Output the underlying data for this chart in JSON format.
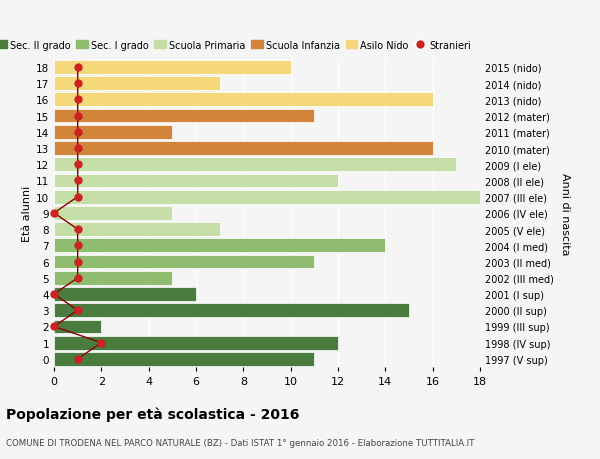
{
  "ages": [
    18,
    17,
    16,
    15,
    14,
    13,
    12,
    11,
    10,
    9,
    8,
    7,
    6,
    5,
    4,
    3,
    2,
    1,
    0
  ],
  "years": [
    "1997 (V sup)",
    "1998 (IV sup)",
    "1999 (III sup)",
    "2000 (II sup)",
    "2001 (I sup)",
    "2002 (III med)",
    "2003 (II med)",
    "2004 (I med)",
    "2005 (V ele)",
    "2006 (IV ele)",
    "2007 (III ele)",
    "2008 (II ele)",
    "2009 (I ele)",
    "2010 (mater)",
    "2011 (mater)",
    "2012 (mater)",
    "2013 (nido)",
    "2014 (nido)",
    "2015 (nido)"
  ],
  "bar_values": [
    11,
    12,
    2,
    15,
    6,
    5,
    11,
    14,
    7,
    5,
    18,
    12,
    17,
    16,
    5,
    11,
    16,
    7,
    10
  ],
  "bar_colors": [
    "#4a7c3f",
    "#4a7c3f",
    "#4a7c3f",
    "#4a7c3f",
    "#4a7c3f",
    "#8fbc6e",
    "#8fbc6e",
    "#8fbc6e",
    "#c5dea8",
    "#c5dea8",
    "#c5dea8",
    "#c5dea8",
    "#c5dea8",
    "#d2843a",
    "#d2843a",
    "#d2843a",
    "#f5d87a",
    "#f5d87a",
    "#f5d87a"
  ],
  "stranieri_x": [
    1,
    2,
    0,
    1,
    0,
    1,
    1,
    1,
    1,
    0,
    1,
    1,
    1,
    1,
    1,
    1,
    1,
    1,
    1
  ],
  "legend_labels": [
    "Sec. II grado",
    "Sec. I grado",
    "Scuola Primaria",
    "Scuola Infanzia",
    "Asilo Nido",
    "Stranieri"
  ],
  "legend_colors": [
    "#4a7c3f",
    "#8fbc6e",
    "#c5dea8",
    "#d2843a",
    "#f5d87a",
    "#cc2222"
  ],
  "title": "Popolazione per età scolastica - 2016",
  "subtitle": "COMUNE DI TRODENA NEL PARCO NATURALE (BZ) - Dati ISTAT 1° gennaio 2016 - Elaborazione TUTTITALIA.IT",
  "ylabel_left": "Età alunni",
  "ylabel_right": "Anni di nascita",
  "xlim": [
    0,
    18
  ],
  "background_color": "#f5f5f5"
}
